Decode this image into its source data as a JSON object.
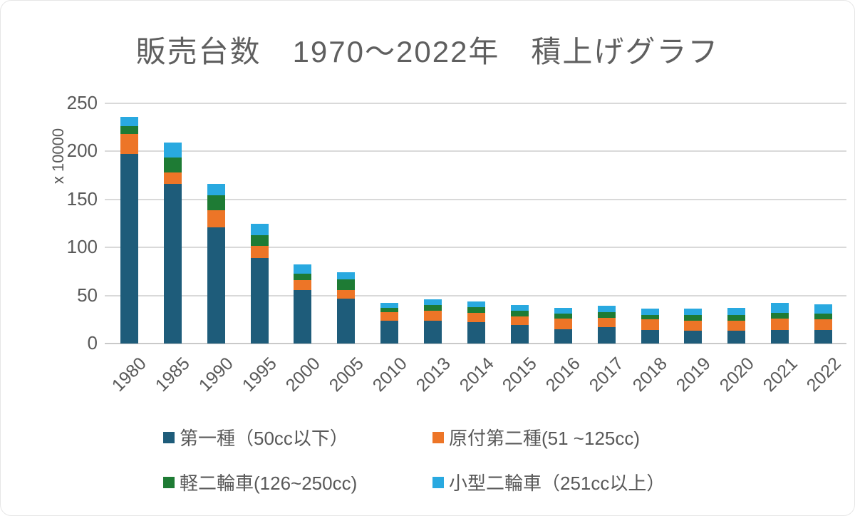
{
  "chart_data": {
    "type": "bar",
    "stacked": true,
    "title": "販売台数　1970〜2022年　積上げグラフ",
    "xlabel": "",
    "ylabel": "x 10000",
    "ylim": [
      0,
      250
    ],
    "y_ticks": [
      0,
      50,
      100,
      150,
      200,
      250
    ],
    "grid": true,
    "legend_position": "bottom",
    "categories": [
      "1980",
      "1985",
      "1990",
      "1995",
      "2000",
      "2005",
      "2010",
      "2013",
      "2014",
      "2015",
      "2016",
      "2017",
      "2018",
      "2019",
      "2020",
      "2021",
      "2022"
    ],
    "series": [
      {
        "name": "第一種（50cc以下）",
        "color": "#1e5c7a",
        "values": [
          197,
          166,
          121,
          89,
          56,
          47,
          24,
          24,
          22,
          19,
          15,
          17,
          14,
          13,
          13,
          14,
          14
        ]
      },
      {
        "name": "原付第二種(51 ~125cc)",
        "color": "#ed7527",
        "values": [
          21,
          12,
          18,
          13,
          10,
          9,
          9,
          10,
          10,
          9,
          11,
          10,
          11,
          11,
          11,
          12,
          11
        ]
      },
      {
        "name": "軽二輪車(126~250cc)",
        "color": "#1e7b34",
        "values": [
          8,
          16,
          15,
          11,
          7,
          11,
          4,
          6,
          6,
          6,
          5,
          6,
          5,
          6,
          6,
          6,
          6
        ]
      },
      {
        "name": "小型二輪車（251cc以上）",
        "color": "#29a9e0",
        "values": [
          10,
          15,
          12,
          12,
          9,
          7,
          5,
          6,
          6,
          6,
          6,
          6,
          6,
          6,
          7,
          10,
          10
        ]
      }
    ]
  },
  "colors": {
    "text": "#595959",
    "title_text": "#5f5f5f",
    "gridline": "#d9d9d9",
    "axis_line": "#c9c9c9",
    "background": "#ffffff"
  },
  "legend": {
    "items": [
      {
        "label": "第一種（50cc以下）"
      },
      {
        "label": "原付第二種(51 ~125cc)"
      },
      {
        "label": "軽二輪車(126~250cc)"
      },
      {
        "label": "小型二輪車（251cc以上）"
      }
    ]
  }
}
